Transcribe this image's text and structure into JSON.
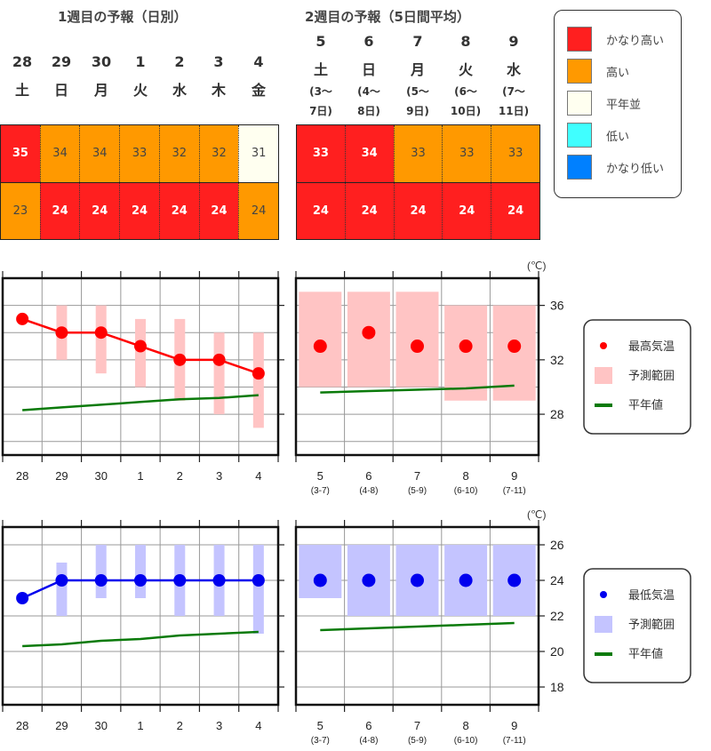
{
  "week1": {
    "title": "1週目の予報（日別）",
    "days": [
      {
        "date": "28",
        "weekday": "土",
        "max": "35",
        "max_class": "very_high",
        "min": "23",
        "min_class": "high"
      },
      {
        "date": "29",
        "weekday": "日",
        "max": "34",
        "max_class": "high",
        "min": "24",
        "min_class": "very_high"
      },
      {
        "date": "30",
        "weekday": "月",
        "max": "34",
        "max_class": "high",
        "min": "24",
        "min_class": "very_high"
      },
      {
        "date": "1",
        "weekday": "火",
        "max": "33",
        "max_class": "high",
        "min": "24",
        "min_class": "very_high"
      },
      {
        "date": "2",
        "weekday": "水",
        "max": "32",
        "max_class": "high",
        "min": "24",
        "min_class": "very_high"
      },
      {
        "date": "3",
        "weekday": "木",
        "max": "32",
        "max_class": "high",
        "min": "24",
        "min_class": "very_high"
      },
      {
        "date": "4",
        "weekday": "金",
        "max": "31",
        "max_class": "normal",
        "min": "24",
        "min_class": "high"
      }
    ]
  },
  "week2": {
    "title": "2週目の予報（5日間平均）",
    "days": [
      {
        "date": "5",
        "weekday": "土",
        "range_a": "(3～",
        "range_b": "7日)",
        "max": "33",
        "max_class": "very_high",
        "min": "24",
        "min_class": "very_high"
      },
      {
        "date": "6",
        "weekday": "日",
        "range_a": "(4～",
        "range_b": "8日)",
        "max": "34",
        "max_class": "very_high",
        "min": "24",
        "min_class": "very_high"
      },
      {
        "date": "7",
        "weekday": "月",
        "range_a": "(5～",
        "range_b": "9日)",
        "max": "33",
        "max_class": "high",
        "min": "24",
        "min_class": "very_high"
      },
      {
        "date": "8",
        "weekday": "火",
        "range_a": "(6～",
        "range_b": "10日)",
        "max": "33",
        "max_class": "high",
        "min": "24",
        "min_class": "very_high"
      },
      {
        "date": "9",
        "weekday": "水",
        "range_a": "(7～",
        "range_b": "11日)",
        "max": "33",
        "max_class": "high",
        "min": "24",
        "min_class": "very_high"
      }
    ]
  },
  "class_legend": [
    {
      "key": "very_high",
      "label": "かなり高い",
      "color": "#ff1f1f"
    },
    {
      "key": "high",
      "label": "高い",
      "color": "#ff9900"
    },
    {
      "key": "normal",
      "label": "平年並",
      "color": "#fffff0"
    },
    {
      "key": "low",
      "label": "低い",
      "color": "#40ffff"
    },
    {
      "key": "very_low",
      "label": "かなり低い",
      "color": "#0080ff"
    }
  ],
  "chart_data": [
    {
      "type": "line",
      "unit": "(℃)",
      "ylim": [
        25,
        38
      ],
      "yticks": [
        28,
        32,
        36
      ],
      "grid": true,
      "legend_position": "right",
      "colors": {
        "point": "#ff0000",
        "range": "#ffc4c4",
        "normal": "#0a7a0a"
      },
      "legend": {
        "point": "最高気温",
        "range": "予測範囲",
        "normal": "平年値"
      },
      "daily": {
        "x": [
          "28",
          "29",
          "30",
          "1",
          "2",
          "3",
          "4"
        ],
        "values": [
          35,
          34,
          34,
          33,
          32,
          32,
          31
        ],
        "range": [
          null,
          [
            32,
            36
          ],
          [
            31,
            36
          ],
          [
            30,
            35
          ],
          [
            29,
            35
          ],
          [
            28,
            34
          ],
          [
            27,
            34
          ]
        ],
        "normal": [
          28.3,
          28.5,
          28.7,
          28.9,
          29.1,
          29.2,
          29.4
        ]
      },
      "weekly": {
        "x": [
          "5",
          "6",
          "7",
          "8",
          "9"
        ],
        "x_sub": [
          "(3-7)",
          "(4-8)",
          "(5-9)",
          "(6-10)",
          "(7-11)"
        ],
        "values": [
          33,
          34,
          33,
          33,
          33
        ],
        "range": [
          [
            30,
            37
          ],
          [
            30,
            37
          ],
          [
            30,
            37
          ],
          [
            29,
            36
          ],
          [
            29,
            36
          ]
        ],
        "normal": [
          29.6,
          29.7,
          29.8,
          29.9,
          30.1
        ]
      }
    },
    {
      "type": "line",
      "unit": "(℃)",
      "ylim": [
        17,
        27
      ],
      "yticks": [
        18,
        20,
        22,
        24,
        26
      ],
      "grid": true,
      "legend_position": "right",
      "colors": {
        "point": "#0000ee",
        "range": "#c4c4ff",
        "normal": "#0a7a0a"
      },
      "legend": {
        "point": "最低気温",
        "range": "予測範囲",
        "normal": "平年値"
      },
      "daily": {
        "x": [
          "28",
          "29",
          "30",
          "1",
          "2",
          "3",
          "4"
        ],
        "values": [
          23,
          24,
          24,
          24,
          24,
          24,
          24
        ],
        "range": [
          null,
          [
            22,
            25
          ],
          [
            23,
            26
          ],
          [
            23,
            26
          ],
          [
            22,
            26
          ],
          [
            22,
            26
          ],
          [
            21,
            26
          ]
        ],
        "normal": [
          20.3,
          20.4,
          20.6,
          20.7,
          20.9,
          21.0,
          21.1
        ]
      },
      "weekly": {
        "x": [
          "5",
          "6",
          "7",
          "8",
          "9"
        ],
        "x_sub": [
          "(3-7)",
          "(4-8)",
          "(5-9)",
          "(6-10)",
          "(7-11)"
        ],
        "values": [
          24,
          24,
          24,
          24,
          24
        ],
        "range": [
          [
            23,
            26
          ],
          [
            22,
            26
          ],
          [
            22,
            26
          ],
          [
            22,
            26
          ],
          [
            22,
            26
          ]
        ],
        "normal": [
          21.2,
          21.3,
          21.4,
          21.5,
          21.6
        ]
      }
    }
  ]
}
